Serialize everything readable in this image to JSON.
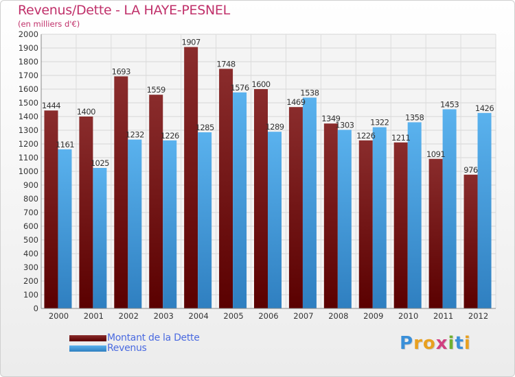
{
  "chart_data": {
    "type": "bar",
    "title": "Revenus/Dette - LA HAYE-PESNEL",
    "subtitle": "(en milliers d'€)",
    "categories": [
      "2000",
      "2001",
      "2002",
      "2003",
      "2004",
      "2005",
      "2006",
      "2007",
      "2008",
      "2009",
      "2010",
      "2011",
      "2012"
    ],
    "series": [
      {
        "name": "Montant de la Dette",
        "color": "#7a1f1f",
        "values": [
          1444,
          1400,
          1693,
          1559,
          1907,
          1748,
          1600,
          1469,
          1349,
          1226,
          1211,
          1091,
          976
        ],
        "labels": [
          "1444",
          "1400",
          "1693",
          "1559",
          "1907",
          "1748",
          "1600",
          "1469",
          "1349",
          "1226",
          "1211",
          "1091",
          "976"
        ]
      },
      {
        "name": "Revenus",
        "color": "#4aa3e6",
        "values": [
          1161,
          1025,
          1232,
          1226,
          1285,
          1576,
          1289,
          1538,
          1303,
          1322,
          1358,
          1453,
          1426
        ],
        "labels": [
          "1161",
          "1025",
          "1232",
          "1226",
          "1285",
          "1576",
          "1289",
          "1538",
          "1303",
          "1322",
          "1358",
          "1453",
          "1426"
        ]
      }
    ],
    "yticks": [
      0,
      100,
      200,
      300,
      400,
      500,
      600,
      700,
      800,
      900,
      1000,
      1100,
      1200,
      1300,
      1400,
      1500,
      1600,
      1700,
      1800,
      1900,
      2000
    ],
    "ylim": [
      0,
      2000
    ],
    "grid": true,
    "legend_position": "bottom-left"
  },
  "logo": {
    "letters": [
      "P",
      "r",
      "o",
      "x",
      "i",
      "t",
      "i"
    ],
    "colors": [
      "#3a8fd8",
      "#e8a020",
      "#e8a020",
      "#d04080",
      "#70b030",
      "#3a8fd8",
      "#e8a020"
    ]
  }
}
